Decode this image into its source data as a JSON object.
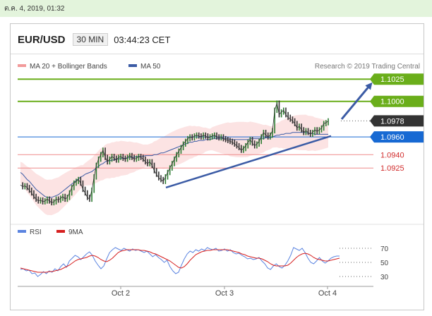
{
  "top_bar": {
    "timestamp": "ต.ค. 4, 2019, 01:32"
  },
  "header": {
    "pair": "EUR/USD",
    "timeframe": "30 MIN",
    "time": "03:44:23 CET"
  },
  "colors": {
    "ma20_band": "#f29a9a",
    "ma50": "#3b5ba5",
    "green_level": "#6aae1a",
    "blue_level": "#1769d3",
    "red_level": "#ef8c8c",
    "price": "#333333",
    "rsi": "#5b84e0",
    "ma9": "#d61f1f"
  },
  "chart_data": [
    {
      "type": "line",
      "title": "",
      "legend": [
        {
          "label": "MA 20 + Bollinger Bands"
        },
        {
          "label": "MA 50"
        }
      ],
      "credit": "Research © 2019 Trading Central",
      "ylim": [
        1.0872,
        1.1045
      ],
      "x_ticks": [
        "Oct 2",
        "Oct 3",
        "Oct 4"
      ],
      "levels": [
        {
          "value": 1.1025,
          "label": "1.1025",
          "style": "green"
        },
        {
          "value": 1.1,
          "label": "1.1000",
          "style": "green"
        },
        {
          "value": 1.0978,
          "label": "1.0978",
          "style": "current"
        },
        {
          "value": 1.096,
          "label": "1.0960",
          "style": "blue"
        },
        {
          "value": 1.094,
          "label": "1.0940",
          "style": "red"
        },
        {
          "value": 1.0925,
          "label": "1.0925",
          "style": "red"
        }
      ],
      "series": [
        {
          "values": [
            1.0906,
            1.0904,
            1.0905,
            1.0903,
            1.09,
            1.0897,
            1.0893,
            1.089,
            1.0888,
            1.0889,
            1.0887,
            1.0888,
            1.089,
            1.0888,
            1.0886,
            1.0887,
            1.089,
            1.0889,
            1.0891,
            1.0893,
            1.089,
            1.0892,
            1.0897,
            1.0903,
            1.0908,
            1.091,
            1.0912,
            1.0908,
            1.0901,
            1.0897,
            1.0892,
            1.089,
            1.09,
            1.0915,
            1.0928,
            1.0935,
            1.094,
            1.0945,
            1.0937,
            1.0932,
            1.0935,
            1.0938,
            1.0936,
            1.0934,
            1.0937,
            1.0938,
            1.0936,
            1.0935,
            1.0937,
            1.0939,
            1.0937,
            1.0935,
            1.0936,
            1.0938,
            1.0937,
            1.0935,
            1.0932,
            1.093,
            1.0932,
            1.0928,
            1.0922,
            1.0918,
            1.0914,
            1.0912,
            1.091,
            1.0915,
            1.092,
            1.0925,
            1.093,
            1.0935,
            1.094,
            1.0944,
            1.0948,
            1.0952,
            1.0955,
            1.0958,
            1.096,
            1.0959,
            1.0961,
            1.0962,
            1.0961,
            1.096,
            1.0962,
            1.0961,
            1.0959,
            1.096,
            1.0961,
            1.0962,
            1.096,
            1.0959,
            1.096,
            1.0958,
            1.0957,
            1.0956,
            1.0955,
            1.0954,
            1.0952,
            1.095,
            1.0948,
            1.0945,
            1.0947,
            1.095,
            1.0954,
            1.0957,
            1.0953,
            1.095,
            1.0952,
            1.0955,
            1.096,
            1.0965,
            1.0962,
            1.096,
            1.0962,
            1.0967,
            1.099,
            1.0998,
            1.0985,
            1.0988,
            1.099,
            1.0985,
            1.0982,
            1.098,
            1.0978,
            1.0975,
            1.097,
            1.0972,
            1.0968,
            1.0965,
            1.0967,
            1.0965,
            1.0963,
            1.0965,
            1.0968,
            1.0966,
            1.0968,
            1.097,
            1.0975,
            1.0976,
            1.0978
          ]
        },
        {
          "values": [
            1.092,
            1.0918,
            1.0915,
            1.0912,
            1.091,
            1.0907,
            1.0904,
            1.0901,
            1.0899,
            1.0897,
            1.0895,
            1.0893,
            1.0892,
            1.0892,
            1.0892,
            1.0893,
            1.0894,
            1.0895,
            1.0897,
            1.0899,
            1.0901,
            1.0903,
            1.0905,
            1.0907,
            1.0909,
            1.0911,
            1.0913,
            1.0915,
            1.0916,
            1.0918,
            1.0919,
            1.092,
            1.0921,
            1.0923,
            1.0925,
            1.0927,
            1.0929,
            1.093,
            1.0932,
            1.0933,
            1.0933,
            1.0934,
            1.0934,
            1.0935,
            1.0935,
            1.0936,
            1.0936,
            1.0936,
            1.0936,
            1.0937,
            1.0937,
            1.0937,
            1.0938,
            1.0938,
            1.0938,
            1.0938,
            1.0939,
            1.0939,
            1.0939,
            1.0939,
            1.094,
            1.094,
            1.0941,
            1.0942,
            1.0942,
            1.0943,
            1.0944,
            1.0945,
            1.0946,
            1.0947,
            1.0948,
            1.0949,
            1.095,
            1.0951,
            1.0952,
            1.0953,
            1.0954,
            1.0954,
            1.0955,
            1.0955,
            1.0956,
            1.0956,
            1.0956,
            1.0957,
            1.0957,
            1.0957,
            1.0958,
            1.0958,
            1.0958,
            1.0958,
            1.0958,
            1.0958,
            1.0958,
            1.0958,
            1.0957,
            1.0957,
            1.0957,
            1.0957,
            1.0957,
            1.0957,
            1.0957,
            1.0957,
            1.0957,
            1.0958,
            1.0958,
            1.0958,
            1.0958,
            1.0958,
            1.0958,
            1.0958,
            1.0959,
            1.0959,
            1.0959,
            1.096,
            1.0961,
            1.0962,
            1.0962,
            1.0963,
            1.0963,
            1.0964,
            1.0964,
            1.0964,
            1.0965,
            1.0965,
            1.0965,
            1.0965,
            1.0965,
            1.0965,
            1.0965,
            1.0964,
            1.0964,
            1.0964,
            1.0963,
            1.0963,
            1.0963,
            1.0963,
            1.0963,
            1.0963,
            1.0963
          ]
        }
      ]
    },
    {
      "type": "line",
      "legend": [
        {
          "label": "RSI"
        },
        {
          "label": "9MA"
        }
      ],
      "y_ticks": [
        "70",
        "50",
        "30"
      ],
      "ylim": [
        20,
        80
      ],
      "series": [
        {
          "values": [
            40,
            41,
            38,
            39,
            34,
            35,
            30,
            33,
            37,
            34,
            38,
            36,
            41,
            38,
            44,
            48,
            43,
            52,
            56,
            60,
            58,
            54,
            58,
            62,
            65,
            60,
            52,
            46,
            41,
            45,
            55,
            64,
            68,
            71,
            69,
            67,
            70,
            68,
            66,
            69,
            67,
            68,
            66,
            64,
            66,
            62,
            58,
            61,
            57,
            54,
            50,
            53,
            44,
            38,
            34,
            36,
            46,
            55,
            62,
            66,
            64,
            68,
            66,
            69,
            67,
            71,
            69,
            68,
            70,
            66,
            67,
            69,
            66,
            68,
            64,
            62,
            63,
            60,
            58,
            55,
            56,
            54,
            55,
            57,
            52,
            48,
            42,
            40,
            45,
            48,
            44,
            42,
            46,
            52,
            60,
            71,
            69,
            67,
            70,
            64,
            56,
            50,
            48,
            52,
            57,
            52,
            49,
            52,
            56,
            58,
            59,
            59
          ]
        },
        {
          "values": [
            42,
            41,
            40,
            39,
            38,
            37,
            36,
            36,
            36,
            36,
            37,
            37,
            38,
            39,
            40,
            42,
            44,
            46,
            49,
            52,
            54,
            55,
            56,
            57,
            59,
            60,
            59,
            57,
            54,
            52,
            51,
            53,
            56,
            60,
            64,
            66,
            67,
            68,
            68,
            68,
            68,
            68,
            67,
            67,
            66,
            65,
            63,
            62,
            60,
            58,
            56,
            54,
            52,
            49,
            46,
            43,
            42,
            44,
            48,
            53,
            57,
            61,
            63,
            65,
            66,
            67,
            67,
            68,
            68,
            68,
            68,
            68,
            68,
            67,
            66,
            65,
            64,
            62,
            61,
            59,
            58,
            57,
            56,
            56,
            55,
            53,
            51,
            48,
            46,
            45,
            45,
            45,
            45,
            46,
            49,
            53,
            57,
            60,
            62,
            63,
            62,
            60,
            57,
            55,
            54,
            53,
            52,
            52,
            53,
            54,
            55,
            56
          ]
        }
      ]
    }
  ]
}
